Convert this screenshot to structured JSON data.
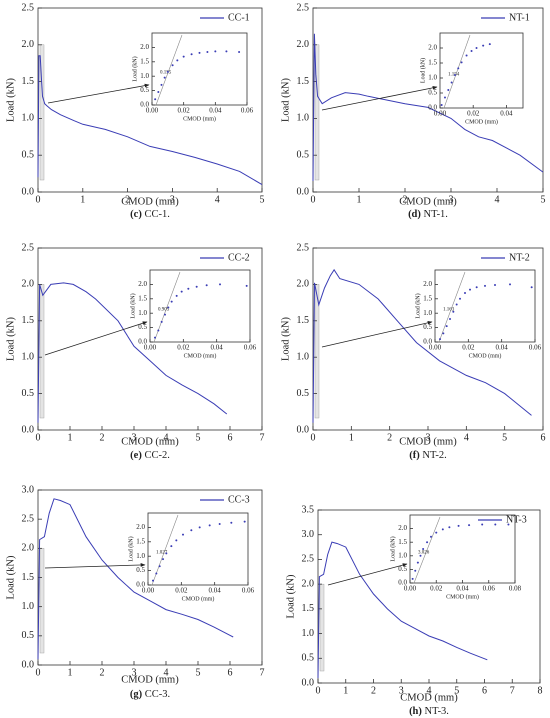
{
  "chart_data": [
    {
      "type": "line",
      "label": "(c)",
      "caption": "CC-1.",
      "xlabel": "CMOD (mm)",
      "ylabel": "Load (kN)",
      "xlim": [
        0,
        5
      ],
      "xticks": [
        0,
        1,
        2,
        3,
        4,
        5
      ],
      "ylim": [
        0,
        2.5
      ],
      "yticks": [
        {
          "value": 0,
          "label": "0.0"
        },
        {
          "value": 0.5,
          "label": "0.5"
        },
        {
          "value": 1,
          "label": "1.0"
        },
        {
          "value": 1.5,
          "label": "1.5"
        },
        {
          "value": 2,
          "label": "2.0"
        },
        {
          "value": 2.5,
          "label": "2.5"
        }
      ],
      "series": [
        {
          "name": "CC-1",
          "color": "#3a3db5",
          "x": [
            0,
            0.02,
            0.05,
            0.08,
            0.1,
            0.15,
            0.2,
            0.3,
            0.5,
            0.8,
            1,
            1.5,
            2,
            2.5,
            3,
            3.5,
            4,
            4.5,
            5
          ],
          "values": [
            0.2,
            1.85,
            1.85,
            1.5,
            1.3,
            1.2,
            1.17,
            1.12,
            1.05,
            0.97,
            0.92,
            0.85,
            0.75,
            0.62,
            0.55,
            0.47,
            0.38,
            0.28,
            0.1
          ]
        }
      ],
      "inset": {
        "xlabel": "CMOD (mm)",
        "ylabel": "Load (kN)",
        "slope": "0.155",
        "xlim": [
          0,
          0.06
        ],
        "xticks": [
          {
            "value": 0,
            "label": "0.00"
          },
          {
            "value": 0.02,
            "label": "0.02"
          },
          {
            "value": 0.04,
            "label": "0.04"
          },
          {
            "value": 0.06,
            "label": "0.06"
          }
        ],
        "ylim": [
          0,
          2.5
        ],
        "yticks": [
          {
            "value": 0,
            "label": "0.0"
          },
          {
            "value": 0.5,
            "label": "0.5"
          },
          {
            "value": 1,
            "label": "1.0"
          },
          {
            "value": 1.5,
            "label": "1.5"
          },
          {
            "value": 2,
            "label": "2.0"
          }
        ],
        "x": [
          0.002,
          0.004,
          0.006,
          0.008,
          0.01,
          0.013,
          0.016,
          0.02,
          0.025,
          0.03,
          0.035,
          0.04,
          0.047,
          0.055
        ],
        "values": [
          0.2,
          0.45,
          0.7,
          0.95,
          1.15,
          1.38,
          1.55,
          1.68,
          1.76,
          1.81,
          1.84,
          1.86,
          1.86,
          1.84
        ]
      }
    },
    {
      "type": "line",
      "label": "(d)",
      "caption": "NT-1.",
      "xlabel": "CMOD (mm)",
      "ylabel": "Load (kN)",
      "xlim": [
        0,
        5
      ],
      "xticks": [
        0,
        1,
        2,
        3,
        4,
        5
      ],
      "ylim": [
        0,
        2.5
      ],
      "yticks": [
        {
          "value": 0,
          "label": "0.0"
        },
        {
          "value": 0.5,
          "label": "0.5"
        },
        {
          "value": 1,
          "label": "1.0"
        },
        {
          "value": 1.5,
          "label": "1.5"
        },
        {
          "value": 2,
          "label": "2.0"
        },
        {
          "value": 2.5,
          "label": "2.5"
        }
      ],
      "series": [
        {
          "name": "NT-1",
          "color": "#3a3db5",
          "x": [
            0,
            0.03,
            0.06,
            0.1,
            0.2,
            0.4,
            0.7,
            1,
            1.2,
            1.6,
            2,
            2.5,
            3,
            3.3,
            3.6,
            3.9,
            4.2,
            4.5,
            5
          ],
          "values": [
            0.15,
            2.15,
            1.6,
            1.3,
            1.2,
            1.28,
            1.35,
            1.33,
            1.3,
            1.25,
            1.2,
            1.15,
            1.0,
            0.85,
            0.75,
            0.7,
            0.6,
            0.5,
            0.27
          ]
        }
      ],
      "inset": {
        "xlabel": "CMOD (mm)",
        "ylabel": "Load (kN)",
        "slope": "1.154",
        "xlim": [
          0,
          0.05
        ],
        "xticks": [
          {
            "value": 0,
            "label": "0.00"
          },
          {
            "value": 0.02,
            "label": "0.02"
          },
          {
            "value": 0.04,
            "label": "0.04"
          }
        ],
        "ylim": [
          0,
          2.5
        ],
        "yticks": [
          {
            "value": 0,
            "label": "0.0"
          },
          {
            "value": 0.5,
            "label": "0.5"
          },
          {
            "value": 1,
            "label": "1.0"
          },
          {
            "value": 1.5,
            "label": "1.5"
          },
          {
            "value": 2,
            "label": "2.0"
          }
        ],
        "x": [
          0.001,
          0.003,
          0.005,
          0.007,
          0.009,
          0.011,
          0.013,
          0.016,
          0.019,
          0.022,
          0.026,
          0.03
        ],
        "values": [
          0.1,
          0.35,
          0.6,
          0.85,
          1.1,
          1.32,
          1.52,
          1.75,
          1.9,
          2.0,
          2.08,
          2.13
        ]
      }
    },
    {
      "type": "line",
      "label": "(e)",
      "caption": "CC-2.",
      "xlabel": "CMOD (mm)",
      "ylabel": "Load (kN)",
      "xlim": [
        0,
        7
      ],
      "xticks": [
        0,
        1,
        2,
        3,
        4,
        5,
        6,
        7
      ],
      "ylim": [
        0,
        2.5
      ],
      "yticks": [
        {
          "value": 0,
          "label": "0.0"
        },
        {
          "value": 0.5,
          "label": "0.5"
        },
        {
          "value": 1,
          "label": "1.0"
        },
        {
          "value": 1.5,
          "label": "1.5"
        },
        {
          "value": 2,
          "label": "2.0"
        },
        {
          "value": 2.5,
          "label": "2.5"
        }
      ],
      "series": [
        {
          "name": "CC-2",
          "color": "#3a3db5",
          "x": [
            0,
            0.05,
            0.15,
            0.4,
            0.8,
            1.1,
            1.5,
            1.8,
            2.5,
            3,
            3.5,
            4,
            4.5,
            5,
            5.5,
            5.9
          ],
          "values": [
            0.1,
            2.0,
            1.85,
            2.0,
            2.02,
            2.0,
            1.9,
            1.8,
            1.5,
            1.15,
            0.95,
            0.75,
            0.62,
            0.5,
            0.36,
            0.22
          ]
        }
      ],
      "inset": {
        "xlabel": "CMOD (mm)",
        "ylabel": "Load (kN)",
        "slope": "0.905",
        "xlim": [
          0,
          0.06
        ],
        "xticks": [
          {
            "value": 0,
            "label": "0.00"
          },
          {
            "value": 0.02,
            "label": "0.02"
          },
          {
            "value": 0.04,
            "label": "0.04"
          },
          {
            "value": 0.06,
            "label": "0.06"
          }
        ],
        "ylim": [
          0,
          2.5
        ],
        "yticks": [
          {
            "value": 0,
            "label": "0.0"
          },
          {
            "value": 0.5,
            "label": "0.5"
          },
          {
            "value": 1,
            "label": "1.0"
          },
          {
            "value": 1.5,
            "label": "1.5"
          },
          {
            "value": 2,
            "label": "2.0"
          }
        ],
        "x": [
          0.003,
          0.005,
          0.007,
          0.009,
          0.011,
          0.013,
          0.016,
          0.019,
          0.023,
          0.028,
          0.034,
          0.042,
          0.058
        ],
        "values": [
          0.15,
          0.4,
          0.7,
          0.95,
          1.2,
          1.4,
          1.6,
          1.75,
          1.85,
          1.92,
          1.97,
          2.0,
          1.95
        ]
      }
    },
    {
      "type": "line",
      "label": "(f)",
      "caption": "NT-2.",
      "xlabel": "CMOD (mm)",
      "ylabel": "Load (kN)",
      "xlim": [
        0,
        6
      ],
      "xticks": [
        0,
        1,
        2,
        3,
        4,
        5,
        6
      ],
      "ylim": [
        0,
        2.5
      ],
      "yticks": [
        {
          "value": 0,
          "label": "0.0"
        },
        {
          "value": 0.5,
          "label": "0.5"
        },
        {
          "value": 1,
          "label": "1.0"
        },
        {
          "value": 1.5,
          "label": "1.5"
        },
        {
          "value": 2,
          "label": "2.0"
        },
        {
          "value": 2.5,
          "label": "2.5"
        }
      ],
      "series": [
        {
          "name": "NT-2",
          "color": "#3a3db5",
          "x": [
            0,
            0.04,
            0.15,
            0.3,
            0.45,
            0.55,
            0.7,
            1.2,
            1.7,
            2.2,
            2.7,
            3.3,
            4,
            4.5,
            5,
            5.7
          ],
          "values": [
            0.1,
            2.02,
            1.72,
            1.95,
            2.12,
            2.2,
            2.08,
            2.0,
            1.8,
            1.5,
            1.2,
            0.95,
            0.75,
            0.65,
            0.5,
            0.2
          ]
        }
      ],
      "inset": {
        "xlabel": "CMOD (mm)",
        "ylabel": "Load (kN)",
        "slope": "1.163",
        "xlim": [
          0,
          0.06
        ],
        "xticks": [
          {
            "value": 0,
            "label": "0.00"
          },
          {
            "value": 0.02,
            "label": "0.02"
          },
          {
            "value": 0.04,
            "label": "0.04"
          },
          {
            "value": 0.06,
            "label": "0.06"
          }
        ],
        "ylim": [
          0,
          2.5
        ],
        "yticks": [
          {
            "value": 0,
            "label": "0.0"
          },
          {
            "value": 0.5,
            "label": "0.5"
          },
          {
            "value": 1,
            "label": "1.0"
          },
          {
            "value": 1.5,
            "label": "1.5"
          },
          {
            "value": 2,
            "label": "2.0"
          }
        ],
        "x": [
          0.003,
          0.005,
          0.007,
          0.009,
          0.011,
          0.013,
          0.015,
          0.018,
          0.021,
          0.025,
          0.03,
          0.036,
          0.045,
          0.058
        ],
        "values": [
          0.1,
          0.3,
          0.55,
          0.8,
          1.05,
          1.3,
          1.5,
          1.7,
          1.82,
          1.9,
          1.95,
          1.98,
          2.0,
          1.9
        ]
      }
    },
    {
      "type": "line",
      "label": "(g)",
      "caption": "CC-3.",
      "xlabel": "CMOD (mm)",
      "ylabel": "Load (kN)",
      "xlim": [
        0,
        7
      ],
      "xticks": [
        0,
        1,
        2,
        3,
        4,
        5,
        6,
        7
      ],
      "ylim": [
        0,
        3
      ],
      "yticks": [
        {
          "value": 0,
          "label": "0.0"
        },
        {
          "value": 0.5,
          "label": "0.5"
        },
        {
          "value": 1,
          "label": "1.0"
        },
        {
          "value": 1.5,
          "label": "1.5"
        },
        {
          "value": 2,
          "label": "2.0"
        },
        {
          "value": 2.5,
          "label": "2.5"
        },
        {
          "value": 3,
          "label": "3.0"
        }
      ],
      "series": [
        {
          "name": "CC-3",
          "color": "#3a3db5",
          "x": [
            0,
            0.05,
            0.2,
            0.35,
            0.5,
            0.7,
            1,
            1.5,
            2,
            2.5,
            3,
            3.5,
            4,
            4.5,
            5,
            5.5,
            6.1
          ],
          "values": [
            0.1,
            2.15,
            2.2,
            2.6,
            2.85,
            2.82,
            2.75,
            2.2,
            1.8,
            1.5,
            1.25,
            1.1,
            0.95,
            0.87,
            0.78,
            0.65,
            0.48
          ]
        }
      ],
      "inset": {
        "xlabel": "CMOD (mm)",
        "ylabel": "Load (kN)",
        "slope": "1.027",
        "xlim": [
          0,
          0.06
        ],
        "xticks": [
          {
            "value": 0,
            "label": "0.00"
          },
          {
            "value": 0.02,
            "label": "0.02"
          },
          {
            "value": 0.04,
            "label": "0.04"
          },
          {
            "value": 0.06,
            "label": "0.06"
          }
        ],
        "ylim": [
          0,
          2.5
        ],
        "yticks": [
          {
            "value": 0,
            "label": "0.0"
          },
          {
            "value": 0.5,
            "label": "0.5"
          },
          {
            "value": 1,
            "label": "1.0"
          },
          {
            "value": 1.5,
            "label": "1.5"
          },
          {
            "value": 2,
            "label": "2.0"
          }
        ],
        "x": [
          0.003,
          0.005,
          0.007,
          0.009,
          0.011,
          0.014,
          0.017,
          0.021,
          0.026,
          0.031,
          0.037,
          0.043,
          0.05,
          0.058
        ],
        "values": [
          0.15,
          0.4,
          0.65,
          0.9,
          1.1,
          1.35,
          1.55,
          1.75,
          1.9,
          2.0,
          2.07,
          2.12,
          2.16,
          2.2
        ]
      }
    },
    {
      "type": "line",
      "label": "(h)",
      "caption": "NT-3.",
      "xlabel": "CMOD (mm)",
      "ylabel": "Load (kN)",
      "xlim": [
        0,
        8
      ],
      "xticks": [
        0,
        1,
        2,
        3,
        4,
        5,
        6,
        7,
        8
      ],
      "ylim": [
        0,
        3.5
      ],
      "yticks": [
        {
          "value": 0,
          "label": "0.0"
        },
        {
          "value": 0.5,
          "label": "0.5"
        },
        {
          "value": 1,
          "label": "1.0"
        },
        {
          "value": 1.5,
          "label": "1.5"
        },
        {
          "value": 2,
          "label": "2.0"
        },
        {
          "value": 2.5,
          "label": "2.5"
        },
        {
          "value": 3,
          "label": "3.0"
        },
        {
          "value": 3.5,
          "label": "3.5"
        }
      ],
      "series": [
        {
          "name": "NT-3",
          "color": "#3a3db5",
          "x": [
            0,
            0.05,
            0.2,
            0.35,
            0.5,
            0.7,
            1,
            1.5,
            2,
            2.5,
            3,
            3.5,
            4,
            4.5,
            5,
            5.5,
            6.1
          ],
          "values": [
            0.1,
            2.15,
            2.2,
            2.6,
            2.85,
            2.82,
            2.75,
            2.2,
            1.8,
            1.5,
            1.25,
            1.1,
            0.95,
            0.85,
            0.72,
            0.6,
            0.47
          ]
        }
      ],
      "inset": {
        "xlabel": "CMOD (mm)",
        "ylabel": "Load (kN)",
        "slope": "3.026",
        "xlim": [
          0,
          0.08
        ],
        "xticks": [
          {
            "value": 0,
            "label": "0.00"
          },
          {
            "value": 0.02,
            "label": "0.02"
          },
          {
            "value": 0.04,
            "label": "0.04"
          },
          {
            "value": 0.06,
            "label": "0.06"
          },
          {
            "value": 0.08,
            "label": "0.08"
          }
        ],
        "ylim": [
          0,
          2.5
        ],
        "yticks": [
          {
            "value": 0,
            "label": "0.0"
          },
          {
            "value": 0.5,
            "label": "0.5"
          },
          {
            "value": 1,
            "label": "1.0"
          },
          {
            "value": 1.5,
            "label": "1.5"
          },
          {
            "value": 2,
            "label": "2.0"
          }
        ],
        "x": [
          0.002,
          0.004,
          0.006,
          0.008,
          0.01,
          0.013,
          0.016,
          0.02,
          0.025,
          0.03,
          0.037,
          0.045,
          0.055,
          0.065,
          0.075
        ],
        "values": [
          0.15,
          0.45,
          0.75,
          1.0,
          1.25,
          1.5,
          1.7,
          1.85,
          1.97,
          2.05,
          2.1,
          2.13,
          2.15,
          2.15,
          2.15
        ]
      }
    }
  ]
}
